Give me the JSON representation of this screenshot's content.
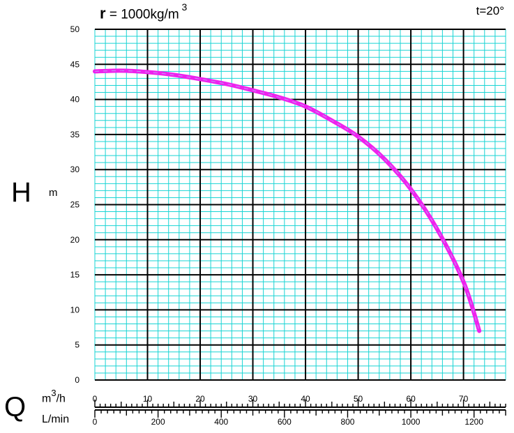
{
  "chart_data": {
    "type": "line",
    "title": "r = 1000kg/m 3",
    "title_parts": {
      "symbol": "r",
      "text": " = 1000kg/m",
      "sup": " 3"
    },
    "condition": "t=20°",
    "ylabel": "H",
    "ylabel_unit": "m",
    "xlabel": "Q",
    "xlabel_unit_primary": {
      "base": "m",
      "sup": "3",
      "rest": "/h"
    },
    "xlabel_unit_secondary": "L/min",
    "xlim": [
      0,
      78
    ],
    "ylim": [
      0,
      50
    ],
    "grid": true,
    "grid_color": "#19d4d4",
    "major_grid_color": "#000000",
    "curve_color": "#ee22ee",
    "y_ticks": [
      0,
      5,
      10,
      15,
      20,
      25,
      30,
      35,
      40,
      45,
      50
    ],
    "x_ticks_primary": [
      0,
      10,
      20,
      30,
      40,
      50,
      60,
      70
    ],
    "x_ticks_secondary": [
      0,
      200,
      400,
      600,
      800,
      1000,
      1200
    ],
    "series": [
      {
        "x": [
          0,
          5,
          10,
          15,
          20,
          25,
          30,
          35,
          40,
          45,
          50,
          55,
          60,
          65,
          70,
          73
        ],
        "y": [
          44,
          44.1,
          43.9,
          43.5,
          42.9,
          42.2,
          41.3,
          40.3,
          39.0,
          37.0,
          34.7,
          31.5,
          27.2,
          21.5,
          14.0,
          7.0
        ]
      }
    ]
  }
}
